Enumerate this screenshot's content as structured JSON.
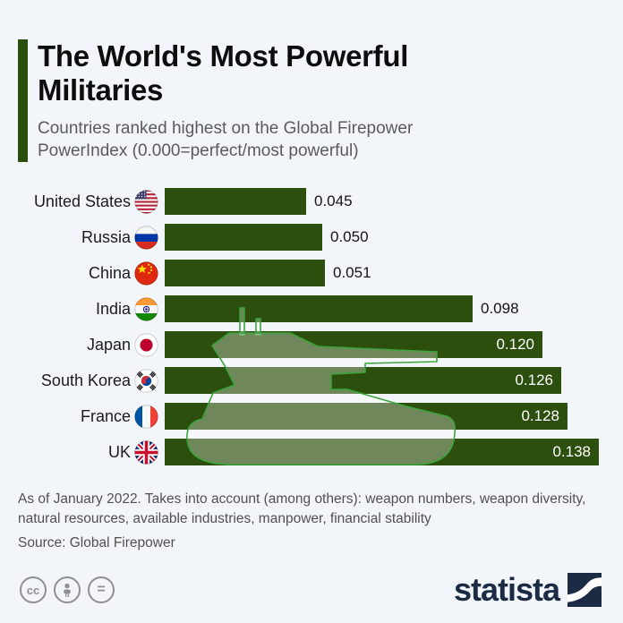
{
  "header": {
    "title": "The World's Most Powerful Militaries",
    "subtitle": "Countries ranked highest on the Global Firepower PowerIndex (0.000=perfect/most powerful)"
  },
  "chart_data": {
    "type": "bar",
    "orientation": "horizontal",
    "title": "The World's Most Powerful Militaries",
    "value_axis_label": "Global Firepower PowerIndex",
    "xlim": [
      0,
      0.138
    ],
    "grid": false,
    "bar_color": "#2d4f0e",
    "watermark": "tank-silhouette",
    "categories": [
      "United States",
      "Russia",
      "China",
      "India",
      "Japan",
      "South Korea",
      "France",
      "UK"
    ],
    "values": [
      0.045,
      0.05,
      0.051,
      0.098,
      0.12,
      0.126,
      0.128,
      0.138
    ],
    "rows": [
      {
        "country": "United States",
        "flag": "us",
        "value": 0.045,
        "display_value": "0.045"
      },
      {
        "country": "Russia",
        "flag": "ru",
        "value": 0.05,
        "display_value": "0.050"
      },
      {
        "country": "China",
        "flag": "cn",
        "value": 0.051,
        "display_value": "0.051"
      },
      {
        "country": "India",
        "flag": "in",
        "value": 0.098,
        "display_value": "0.098"
      },
      {
        "country": "Japan",
        "flag": "jp",
        "value": 0.12,
        "display_value": "0.120"
      },
      {
        "country": "South Korea",
        "flag": "kr",
        "value": 0.126,
        "display_value": "0.126"
      },
      {
        "country": "France",
        "flag": "fr",
        "value": 0.128,
        "display_value": "0.128"
      },
      {
        "country": "UK",
        "flag": "gb",
        "value": 0.138,
        "display_value": "0.138"
      }
    ]
  },
  "footer": {
    "note": "As of January 2022. Takes into account (among others): weapon numbers, weapon diversity, natural resources, available industries, manpower, financial stability",
    "source": "Source: Global Firepower"
  },
  "branding": {
    "logo_text": "statista",
    "cc_label": "cc",
    "equal_label": "=",
    "license_icons": [
      "cc-icon",
      "attribution-icon",
      "equal-icon"
    ]
  },
  "colors": {
    "background": "#f2f5f9",
    "bar": "#2d4f0e",
    "accent_bar": "#2d4f0e",
    "tank_outline": "#3aa43a",
    "logo_navy": "#1b2b44",
    "value_inside": "#ffffff",
    "value_outside": "#141414"
  }
}
